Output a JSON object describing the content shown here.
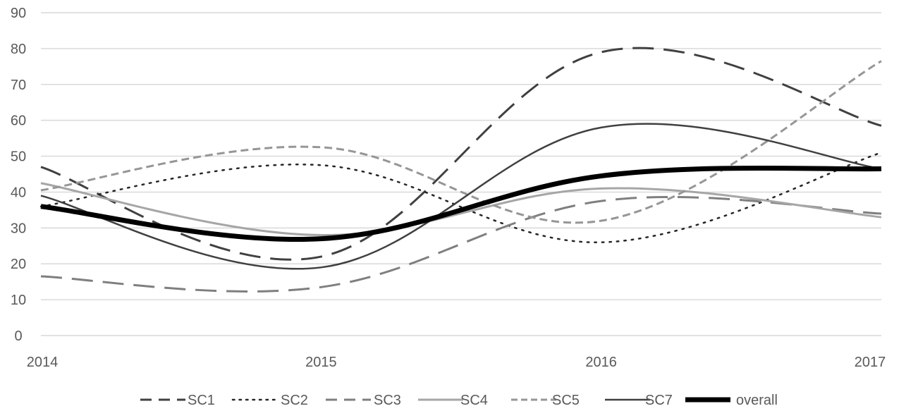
{
  "chart_data": {
    "type": "line",
    "title": "",
    "xlabel": "",
    "ylabel": "",
    "x": [
      2014,
      2015,
      2016,
      2017
    ],
    "xlim": [
      2014,
      2017
    ],
    "ylim": [
      0,
      90
    ],
    "y_ticks": [
      "0",
      "10",
      "20",
      "30",
      "40",
      "50",
      "60",
      "70",
      "80",
      "90"
    ],
    "x_ticks": [
      "2014",
      "2015",
      "2016",
      "2017"
    ],
    "grid": "horizontal",
    "legend_position": "bottom",
    "smooth": true,
    "series": [
      {
        "name": "SC1",
        "values": [
          47,
          22,
          79,
          58.5
        ],
        "color": "#404040",
        "style": "longdash",
        "width": 3
      },
      {
        "name": "SC2",
        "values": [
          36,
          47.5,
          26,
          51
        ],
        "color": "#262626",
        "style": "dotted",
        "width": 2.5
      },
      {
        "name": "SC3",
        "values": [
          16.5,
          13.5,
          37.5,
          34
        ],
        "color": "#7f7f7f",
        "style": "longdash",
        "width": 3
      },
      {
        "name": "SC4",
        "values": [
          42.5,
          28,
          41,
          33
        ],
        "color": "#a6a6a6",
        "style": "solid",
        "width": 3
      },
      {
        "name": "SC5",
        "values": [
          40.5,
          52.5,
          32,
          76.5
        ],
        "color": "#969696",
        "style": "dash",
        "width": 3
      },
      {
        "name": "SC7",
        "values": [
          39,
          19,
          58,
          46.5
        ],
        "color": "#404040",
        "style": "solid",
        "width": 2.5
      },
      {
        "name": "overall",
        "values": [
          36,
          27,
          44.5,
          46.5
        ],
        "color": "#000000",
        "style": "solid",
        "width": 7
      }
    ]
  },
  "colors": {
    "gridline": "#d9d9d9",
    "tick_text": "#595959"
  }
}
